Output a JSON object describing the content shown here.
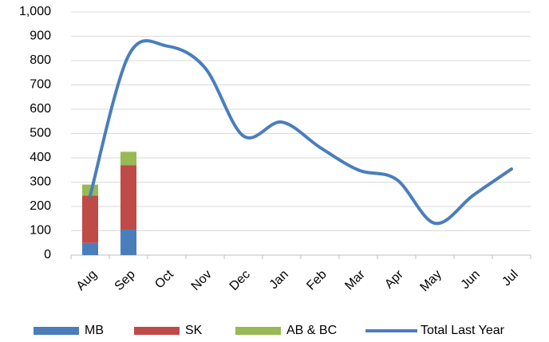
{
  "chart_data": {
    "type": "bar",
    "categories": [
      "Aug",
      "Sep",
      "Oct",
      "Nov",
      "Dec",
      "Jan",
      "Feb",
      "Mar",
      "Apr",
      "May",
      "Jun",
      "Jul"
    ],
    "series": [
      {
        "name": "MB",
        "color": "#4a7ebb",
        "values": [
          50,
          105,
          null,
          null,
          null,
          null,
          null,
          null,
          null,
          null,
          null,
          null
        ]
      },
      {
        "name": "SK",
        "color": "#be4b48",
        "values": [
          195,
          265,
          null,
          null,
          null,
          null,
          null,
          null,
          null,
          null,
          null,
          null
        ]
      },
      {
        "name": "AB & BC",
        "color": "#98b954",
        "values": [
          45,
          55,
          null,
          null,
          null,
          null,
          null,
          null,
          null,
          null,
          null,
          null
        ]
      },
      {
        "name": "Total Last Year",
        "type": "line",
        "color": "#4a7ebb",
        "values": [
          245,
          820,
          860,
          770,
          490,
          547,
          443,
          350,
          311,
          131,
          246,
          354
        ]
      }
    ],
    "ylim": [
      0,
      1000
    ],
    "yticks": [
      0,
      100,
      200,
      300,
      400,
      500,
      600,
      700,
      800,
      900,
      {
        "value": 1000,
        "label": "1,000"
      }
    ],
    "grid": true,
    "legend": "bottom"
  }
}
